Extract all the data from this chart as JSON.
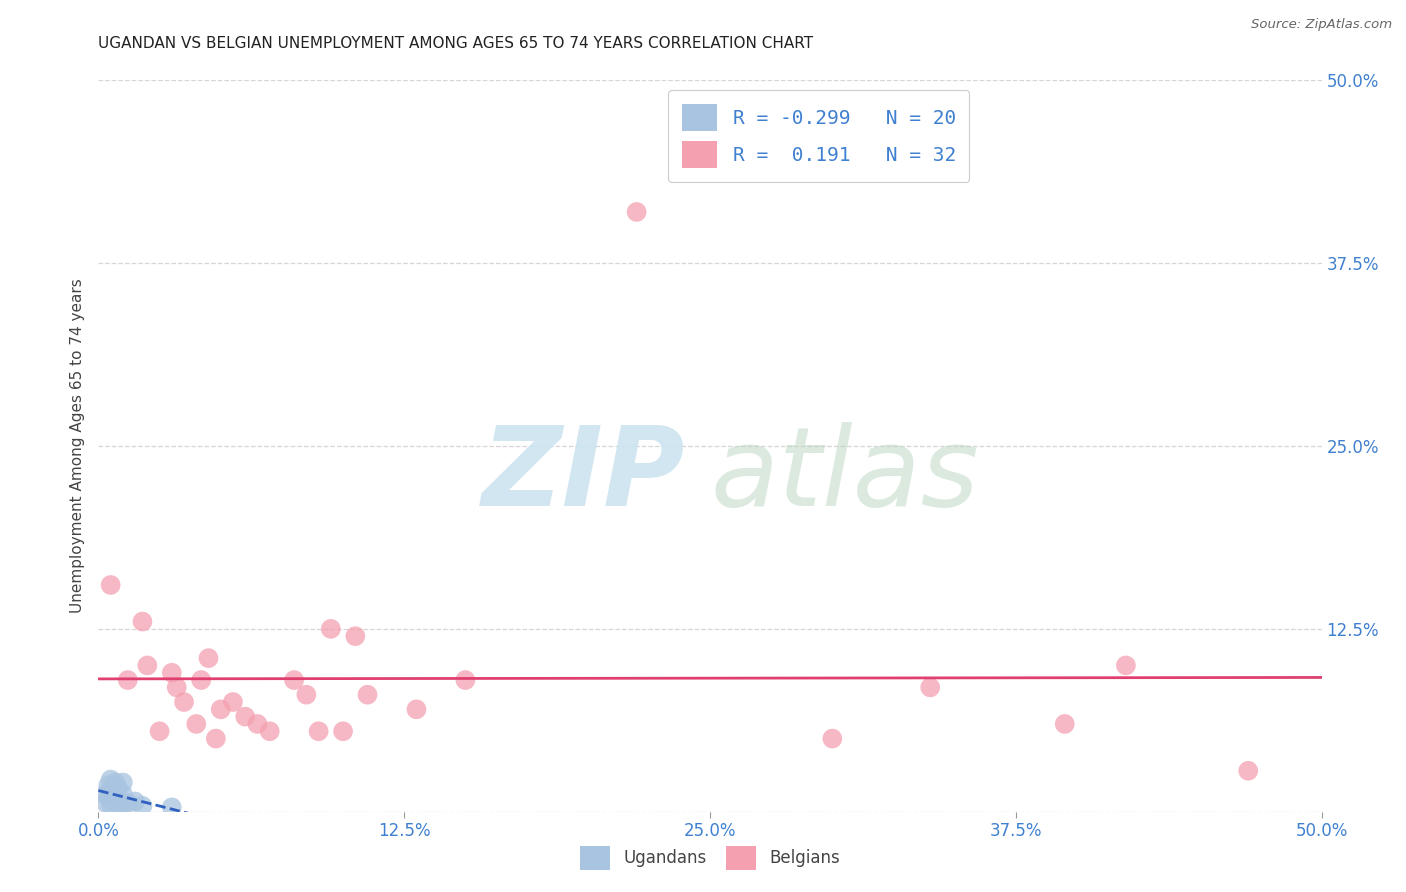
{
  "title": "UGANDAN VS BELGIAN UNEMPLOYMENT AMONG AGES 65 TO 74 YEARS CORRELATION CHART",
  "source": "Source: ZipAtlas.com",
  "ylabel": "Unemployment Among Ages 65 to 74 years",
  "xlim": [
    0.0,
    0.5
  ],
  "ylim": [
    0.0,
    0.5
  ],
  "xticks": [
    0.0,
    0.125,
    0.25,
    0.375,
    0.5
  ],
  "yticks": [
    0.0,
    0.125,
    0.25,
    0.375,
    0.5
  ],
  "xticklabels": [
    "0.0%",
    "12.5%",
    "25.0%",
    "37.5%",
    "50.0%"
  ],
  "right_yticklabels": [
    "",
    "12.5%",
    "25.0%",
    "37.5%",
    "50.0%"
  ],
  "ugandan_color": "#a8c4e0",
  "belgian_color": "#f4a0b0",
  "ugandan_line_color": "#3060c0",
  "belgian_line_color": "#e04070",
  "tick_label_color": "#4080d0",
  "R_ugandan": -0.299,
  "N_ugandan": 20,
  "R_belgian": 0.191,
  "N_belgian": 32,
  "ugandan_x": [
    0.003,
    0.003,
    0.004,
    0.004,
    0.005,
    0.005,
    0.005,
    0.006,
    0.007,
    0.007,
    0.008,
    0.008,
    0.009,
    0.01,
    0.01,
    0.01,
    0.012,
    0.015,
    0.018,
    0.03
  ],
  "ugandan_y": [
    0.006,
    0.012,
    0.018,
    0.01,
    0.005,
    0.015,
    0.022,
    0.009,
    0.012,
    0.02,
    0.005,
    0.016,
    0.007,
    0.005,
    0.012,
    0.02,
    0.006,
    0.007,
    0.004,
    0.003
  ],
  "belgian_x": [
    0.005,
    0.012,
    0.018,
    0.02,
    0.025,
    0.03,
    0.032,
    0.035,
    0.04,
    0.042,
    0.045,
    0.048,
    0.05,
    0.055,
    0.06,
    0.065,
    0.07,
    0.08,
    0.085,
    0.09,
    0.095,
    0.1,
    0.105,
    0.11,
    0.13,
    0.15,
    0.22,
    0.3,
    0.34,
    0.395,
    0.42,
    0.47
  ],
  "belgian_y": [
    0.155,
    0.09,
    0.13,
    0.1,
    0.055,
    0.095,
    0.085,
    0.075,
    0.06,
    0.09,
    0.105,
    0.05,
    0.07,
    0.075,
    0.065,
    0.06,
    0.055,
    0.09,
    0.08,
    0.055,
    0.125,
    0.055,
    0.12,
    0.08,
    0.07,
    0.09,
    0.41,
    0.05,
    0.085,
    0.06,
    0.1,
    0.028
  ],
  "watermark_zip_color": "#cce4f0",
  "watermark_atlas_color": "#b8d4c0",
  "background_color": "#ffffff",
  "grid_color": "#bbbbbb"
}
